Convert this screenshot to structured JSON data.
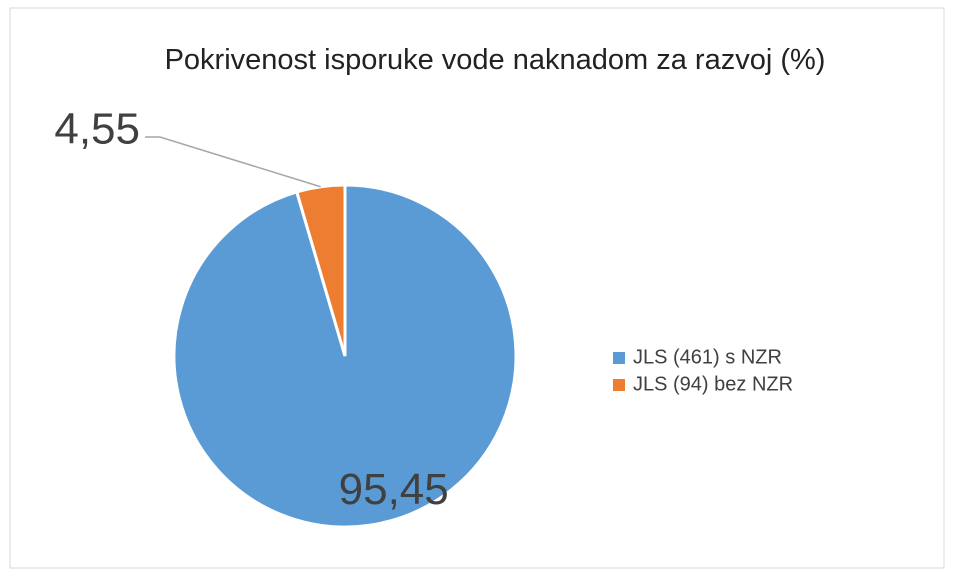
{
  "chart_data": {
    "type": "pie",
    "title": "Pokrivenost isporuke vode naknadom za razvoj (%)",
    "categories": [
      "JLS (461) s NZR",
      "JLS (94) bez NZR"
    ],
    "values": [
      95.45,
      4.55
    ],
    "value_labels": [
      "95,45",
      "4,55"
    ],
    "colors": [
      "#5b9bd5",
      "#ed7d31"
    ],
    "legend": "right"
  }
}
